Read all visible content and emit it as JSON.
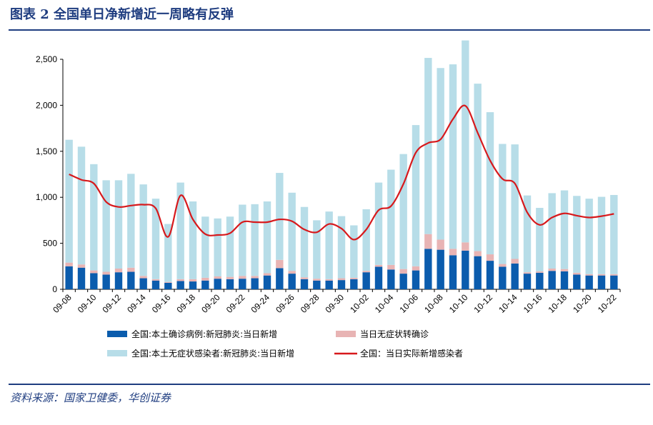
{
  "header": {
    "title": "图表 2 全国单日净新增近一周略有反弹"
  },
  "footer": {
    "source": "资料来源：国家卫健委，华创证券"
  },
  "chart_data": {
    "type": "bar",
    "title": "全国单日净新增近一周略有反弹",
    "xlabel": "",
    "ylabel": "",
    "ylim": [
      0,
      2500
    ],
    "yticks": [
      0,
      500,
      1000,
      1500,
      2000,
      2500
    ],
    "ytick_labels": [
      "0",
      "500",
      "1,000",
      "1,500",
      "2,000",
      "2,500"
    ],
    "grid": false,
    "legend_position": "bottom",
    "colors": {
      "confirmed": "#0b5cad",
      "transfer": "#e8b4b4",
      "asymptomatic": "#b7dde8",
      "actual": "#d7191c"
    },
    "x": [
      "09-08",
      "09-09",
      "09-10",
      "09-11",
      "09-12",
      "09-13",
      "09-14",
      "09-15",
      "09-16",
      "09-17",
      "09-18",
      "09-19",
      "09-20",
      "09-21",
      "09-22",
      "09-23",
      "09-24",
      "09-25",
      "09-26",
      "09-27",
      "09-28",
      "09-29",
      "09-30",
      "10-01",
      "10-02",
      "10-03",
      "10-04",
      "10-05",
      "10-06",
      "10-07",
      "10-08",
      "10-09",
      "10-10",
      "10-11",
      "10-12",
      "10-13",
      "10-14",
      "10-15",
      "10-16",
      "10-17",
      "10-18",
      "10-19",
      "10-20",
      "10-21",
      "10-22"
    ],
    "xtick_labels": [
      "09-08",
      "09-10",
      "09-12",
      "09-14",
      "09-16",
      "09-18",
      "09-20",
      "09-22",
      "09-24",
      "09-26",
      "09-28",
      "09-30",
      "10-02",
      "10-04",
      "10-06",
      "10-08",
      "10-10",
      "10-12",
      "10-14",
      "10-16",
      "10-18",
      "10-20",
      "10-22"
    ],
    "series": [
      {
        "name": "全国:本土确诊病例:新冠肺炎:当日新增",
        "kind": "bar",
        "values": [
          250,
          235,
          175,
          160,
          185,
          190,
          120,
          95,
          70,
          90,
          85,
          95,
          115,
          110,
          115,
          120,
          150,
          230,
          170,
          110,
          95,
          95,
          100,
          110,
          185,
          245,
          215,
          170,
          205,
          440,
          430,
          370,
          420,
          360,
          310,
          245,
          280,
          170,
          180,
          200,
          195,
          160,
          150,
          150,
          150
        ]
      },
      {
        "name": "当日无症状转确诊",
        "kind": "bar",
        "values": [
          40,
          35,
          30,
          30,
          40,
          45,
          25,
          15,
          10,
          20,
          25,
          30,
          25,
          25,
          30,
          25,
          25,
          90,
          30,
          20,
          20,
          15,
          20,
          15,
          15,
          20,
          50,
          50,
          45,
          160,
          110,
          70,
          90,
          55,
          70,
          30,
          50,
          15,
          15,
          25,
          25,
          20,
          15,
          15,
          15
        ]
      },
      {
        "name": "全国:本土无症状感染者:新冠肺炎:当日新增",
        "kind": "bar",
        "values": [
          1335,
          1280,
          1155,
          995,
          960,
          1020,
          995,
          875,
          630,
          1050,
          845,
          665,
          630,
          655,
          775,
          780,
          780,
          945,
          850,
          765,
          635,
          735,
          675,
          570,
          670,
          895,
          1035,
          1250,
          1535,
          1915,
          1865,
          2005,
          2195,
          1820,
          1545,
          1305,
          1245,
          835,
          690,
          820,
          855,
          835,
          820,
          840,
          860
        ]
      },
      {
        "name": "全国：当日实际新增感染者",
        "kind": "line",
        "values": [
          1250,
          1190,
          1150,
          950,
          895,
          910,
          920,
          880,
          570,
          1020,
          760,
          600,
          590,
          610,
          730,
          730,
          730,
          760,
          740,
          650,
          620,
          710,
          660,
          540,
          650,
          860,
          905,
          1145,
          1485,
          1590,
          1630,
          1850,
          1995,
          1700,
          1400,
          1200,
          1150,
          835,
          700,
          780,
          825,
          800,
          780,
          795,
          820
        ]
      }
    ]
  }
}
